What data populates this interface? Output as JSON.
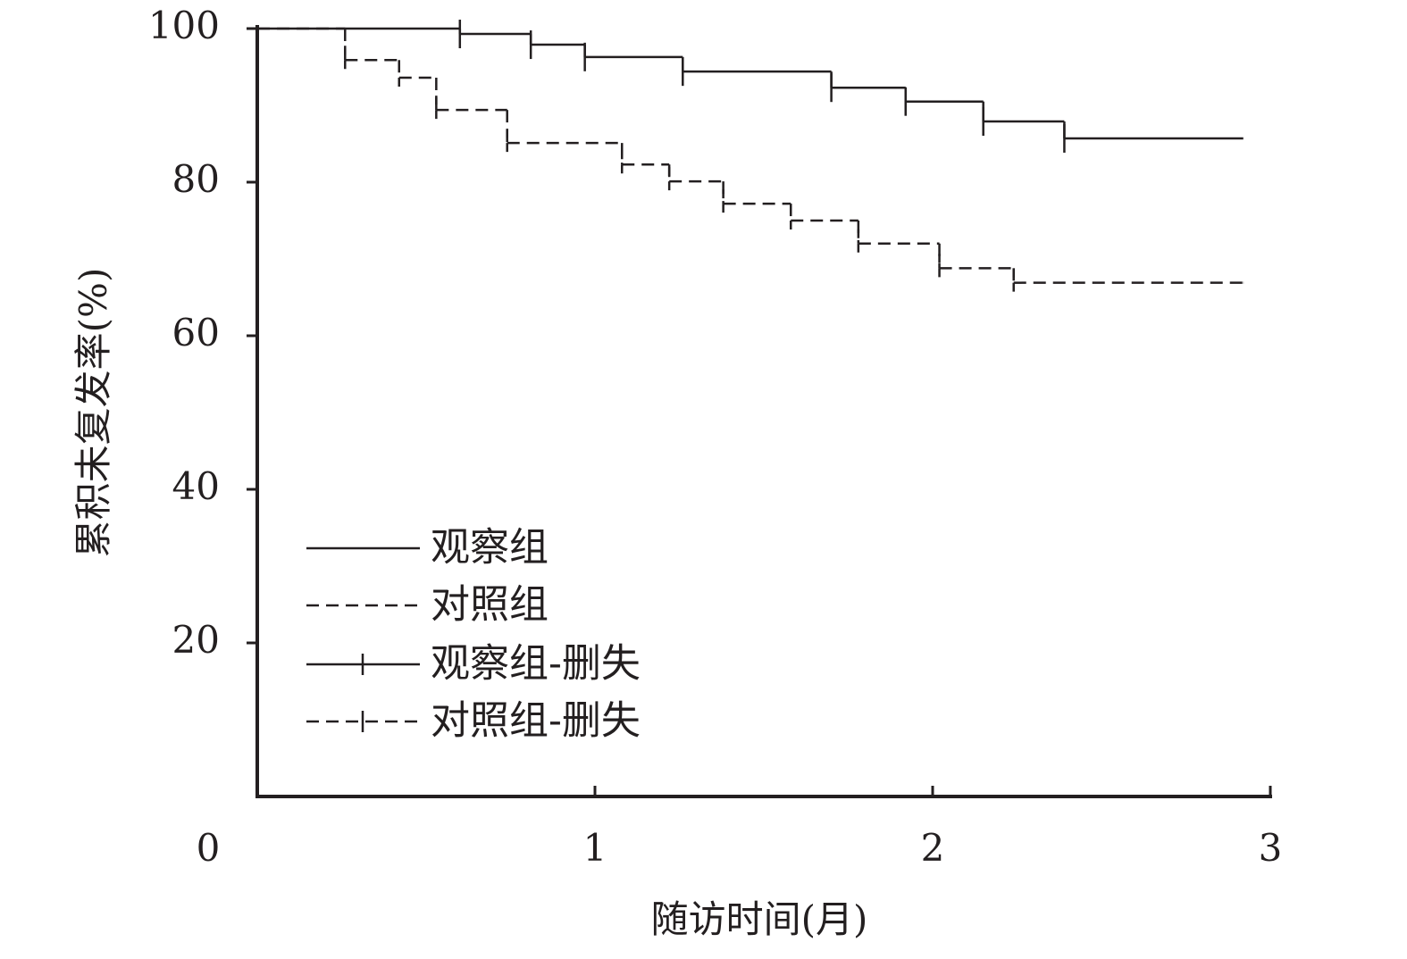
{
  "chart_data": {
    "type": "step",
    "xlabel": "随访时间(月)",
    "ylabel": "累积未复发率(%)",
    "xlim": [
      0,
      3
    ],
    "xticks": [
      0,
      1,
      2,
      3
    ],
    "ylim": [
      0,
      100
    ],
    "yticks": [
      20,
      40,
      60,
      80,
      100
    ],
    "series": [
      {
        "name": "观察组",
        "kind": "step",
        "dash": false,
        "color": "#231f20",
        "x": [
          0,
          0.6,
          0.81,
          0.97,
          1.26,
          1.7,
          1.92,
          2.15,
          2.39,
          2.92
        ],
        "values": [
          100,
          99.3,
          97.9,
          96.3,
          94.4,
          92.3,
          90.5,
          87.9,
          85.7,
          85.7
        ]
      },
      {
        "name": "对照组",
        "kind": "step",
        "dash": true,
        "color": "#231f20",
        "x": [
          0,
          0.26,
          0.42,
          0.53,
          0.74,
          1.08,
          1.22,
          1.38,
          1.58,
          1.78,
          2.02,
          2.24,
          2.92
        ],
        "values": [
          100,
          95.9,
          93.6,
          89.4,
          85.1,
          82.3,
          80.1,
          77.2,
          75.0,
          72.0,
          68.8,
          66.9,
          66.9
        ]
      },
      {
        "name": "观察组-删失",
        "kind": "censor",
        "dash": false,
        "color": "#231f20",
        "x": [
          0.6,
          0.81,
          0.97,
          1.26,
          1.7,
          1.92,
          2.15,
          2.39
        ],
        "values": [
          99.3,
          97.9,
          96.3,
          94.4,
          92.3,
          90.5,
          87.9,
          85.7
        ]
      },
      {
        "name": "对照组-删失",
        "kind": "censor",
        "dash": true,
        "color": "#231f20",
        "x": [
          0.26,
          0.42,
          0.53,
          0.74,
          1.08,
          1.22,
          1.38,
          1.58,
          1.78,
          2.02,
          2.24
        ],
        "values": [
          95.9,
          93.6,
          89.4,
          85.1,
          82.3,
          80.1,
          77.2,
          75.0,
          72.0,
          68.8,
          66.9
        ]
      }
    ]
  }
}
